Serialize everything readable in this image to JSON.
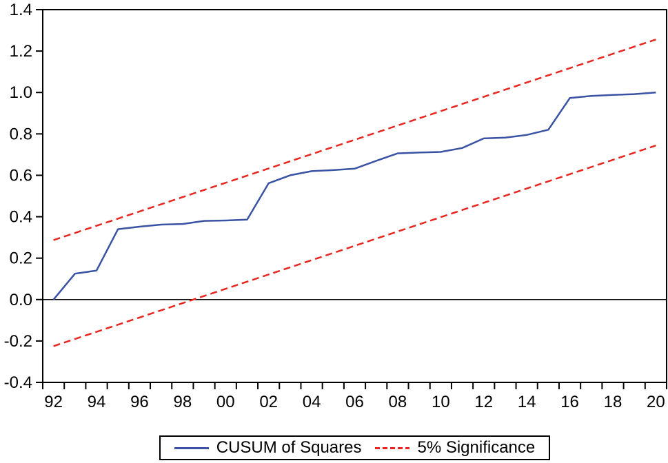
{
  "chart_data": {
    "type": "line",
    "title": "",
    "xlabel": "",
    "ylabel": "",
    "grid": false,
    "zero_line": true,
    "ylim": [
      -0.4,
      1.4
    ],
    "xlim_years": [
      1991.5,
      2020.5
    ],
    "y_ticks": [
      {
        "value": 1.4,
        "label": "1.4"
      },
      {
        "value": 1.2,
        "label": "1.2"
      },
      {
        "value": 1.0,
        "label": "1.0"
      },
      {
        "value": 0.8,
        "label": "0.8"
      },
      {
        "value": 0.6,
        "label": "0.6"
      },
      {
        "value": 0.4,
        "label": "0.4"
      },
      {
        "value": 0.2,
        "label": "0.2"
      },
      {
        "value": 0.0,
        "label": "0.0"
      },
      {
        "value": -0.2,
        "label": "-0.2"
      },
      {
        "value": -0.4,
        "label": "-0.4"
      }
    ],
    "x_ticks": [
      {
        "year": 1992,
        "label": "92"
      },
      {
        "year": 1994,
        "label": "94"
      },
      {
        "year": 1996,
        "label": "96"
      },
      {
        "year": 1998,
        "label": "98"
      },
      {
        "year": 2000,
        "label": "00"
      },
      {
        "year": 2002,
        "label": "02"
      },
      {
        "year": 2004,
        "label": "04"
      },
      {
        "year": 2006,
        "label": "06"
      },
      {
        "year": 2008,
        "label": "08"
      },
      {
        "year": 2010,
        "label": "10"
      },
      {
        "year": 2012,
        "label": "12"
      },
      {
        "year": 2014,
        "label": "14"
      },
      {
        "year": 2016,
        "label": "16"
      },
      {
        "year": 2018,
        "label": "18"
      },
      {
        "year": 2020,
        "label": "20"
      }
    ],
    "series": [
      {
        "name": "CUSUM of Squares",
        "color": "#3a52a4",
        "style": "solid",
        "x": [
          1992,
          1993,
          1994,
          1995,
          1996,
          1997,
          1998,
          1999,
          2000,
          2001,
          2002,
          2003,
          2004,
          2005,
          2006,
          2007,
          2008,
          2009,
          2010,
          2011,
          2012,
          2013,
          2014,
          2015,
          2016,
          2017,
          2018,
          2019,
          2020
        ],
        "values": [
          0.0,
          0.125,
          0.14,
          0.34,
          0.352,
          0.362,
          0.365,
          0.38,
          0.382,
          0.386,
          0.562,
          0.6,
          0.62,
          0.625,
          0.632,
          0.67,
          0.706,
          0.71,
          0.713,
          0.732,
          0.778,
          0.782,
          0.795,
          0.82,
          0.973,
          0.983,
          0.988,
          0.992,
          1.0
        ]
      },
      {
        "name": "5% Significance upper bound",
        "color": "#e8261f",
        "style": "dashed",
        "x": [
          1992,
          2020
        ],
        "values": [
          0.287,
          1.256
        ]
      },
      {
        "name": "5% Significance lower bound",
        "color": "#e8261f",
        "style": "dashed",
        "x": [
          1992,
          2020
        ],
        "values": [
          -0.225,
          0.744
        ]
      }
    ],
    "legend": {
      "position": "bottom",
      "entries": [
        {
          "label": "CUSUM of Squares",
          "color": "#3a52a4",
          "style": "solid"
        },
        {
          "label": "5% Significance",
          "color": "#e8261f",
          "style": "dashed"
        }
      ]
    },
    "colors": {
      "axis": "#000000",
      "background": "#ffffff"
    }
  }
}
